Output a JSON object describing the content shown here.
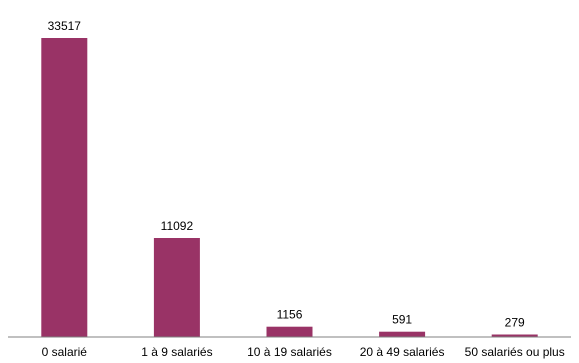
{
  "chart_data": {
    "type": "bar",
    "title": "",
    "xlabel": "",
    "ylabel": "",
    "categories": [
      "0 salarié",
      "1 à 9 salariés",
      "10 à 19 salariés",
      "20 à 49 salariés",
      "50 salariés ou plus"
    ],
    "values": [
      33517,
      11092,
      1156,
      591,
      279
    ],
    "data_labels": [
      "33517",
      "11092",
      "1156",
      "591",
      "279"
    ],
    "ylim": [
      0,
      33517
    ],
    "grid": false,
    "legend": "none",
    "bar_color": "#993366",
    "axis_color": "#808080"
  }
}
